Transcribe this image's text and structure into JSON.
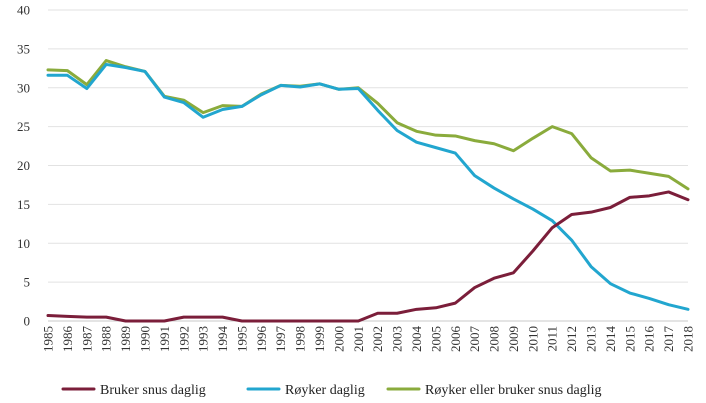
{
  "chart_data": {
    "type": "line",
    "title": "",
    "xlabel": "",
    "ylabel": "",
    "ylim": [
      0,
      40
    ],
    "y_ticks": [
      0,
      5,
      10,
      15,
      20,
      25,
      30,
      35,
      40
    ],
    "grid": true,
    "legend_position": "bottom",
    "categories": [
      "1985",
      "1986",
      "1987",
      "1988",
      "1989",
      "1990",
      "1991",
      "1992",
      "1993",
      "1994",
      "1995",
      "1996",
      "1997",
      "1998",
      "1999",
      "2000",
      "2001",
      "2002",
      "2003",
      "2004",
      "2005",
      "2006",
      "2007",
      "2008",
      "2009",
      "2010",
      "2011",
      "2012",
      "2013",
      "2014",
      "2015",
      "2016",
      "2017",
      "2018"
    ],
    "series": [
      {
        "name": "Bruker snus daglig",
        "color": "#7b1e3a",
        "values": [
          0.7,
          0.6,
          0.5,
          0.5,
          0,
          0,
          0,
          0.5,
          0.5,
          0.5,
          0,
          0,
          0,
          0,
          0,
          0,
          0,
          1,
          1,
          1.5,
          1.7,
          2.3,
          4.3,
          5.5,
          6.2,
          9,
          12,
          13.7,
          14,
          14.6,
          15.9,
          16.1,
          16.6,
          15.6
        ]
      },
      {
        "name": "Røyker daglig",
        "color": "#22a6cf",
        "values": [
          31.6,
          31.6,
          29.9,
          33,
          32.6,
          32.1,
          28.8,
          28.1,
          26.2,
          27.2,
          27.6,
          29.1,
          30.3,
          30.1,
          30.5,
          29.8,
          29.9,
          27.1,
          24.5,
          23,
          22.3,
          21.6,
          18.7,
          17.1,
          15.7,
          14.4,
          12.9,
          10.4,
          7,
          4.8,
          3.6,
          2.9,
          2.1,
          1.5
        ]
      },
      {
        "name": "Røyker eller bruker snus daglig",
        "color": "#8aab3c",
        "values": [
          32.3,
          32.2,
          30.4,
          33.5,
          32.7,
          32.1,
          28.9,
          28.4,
          26.8,
          27.7,
          27.6,
          29.2,
          30.3,
          30.2,
          30.5,
          29.8,
          30,
          28,
          25.5,
          24.4,
          23.9,
          23.8,
          23.2,
          22.8,
          21.9,
          23.5,
          25,
          24.1,
          21,
          19.3,
          19.4,
          19,
          18.6,
          17
        ]
      }
    ]
  }
}
